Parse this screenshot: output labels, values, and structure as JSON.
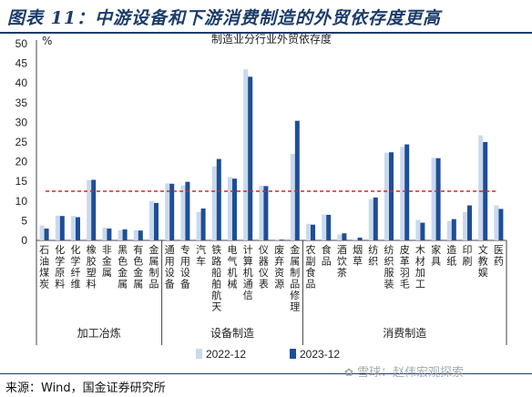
{
  "header": {
    "title": "图表 11：中游设备和下游消费制造的外贸依存度更高"
  },
  "footer": {
    "source": "来源：Wind，国金证券研究所"
  },
  "watermark": {
    "icon": "paw-icon",
    "text": "雪球：赵伟宏观探索"
  },
  "colors": {
    "series_2022": "#c9d9ee",
    "series_2023": "#1f4e96",
    "reference_line": "#d7262b",
    "header": "#1b3c6b"
  },
  "chart_data": {
    "type": "bar",
    "title": "制造业分行业外贸依存度",
    "ylabel": "%",
    "xlabel": "",
    "ylim": [
      0,
      50
    ],
    "yticks": [
      0,
      5,
      10,
      15,
      20,
      25,
      30,
      35,
      40,
      45,
      50
    ],
    "grid": false,
    "legend_position": "bottom",
    "reference_line": 12.5,
    "categories": [
      "石油煤炭",
      "化学原料",
      "化学纤维",
      "橡胶塑料",
      "非金属",
      "黑色金属",
      "有色金属",
      "金属制品",
      "通用设备",
      "专用设备",
      "汽车",
      "铁路船舶航天",
      "电气机械",
      "计算机通信",
      "仪器仪表",
      "废弃资源",
      "金属制品修理",
      "农副食品",
      "食品",
      "酒饮茶",
      "烟草",
      "纺织",
      "纺织服装",
      "皮革羽毛",
      "木材加工",
      "家具",
      "造纸",
      "印刷",
      "文教娱",
      "医药"
    ],
    "groups": [
      {
        "name": "加工冶炼",
        "start": 0,
        "end": 7
      },
      {
        "name": "设备制造",
        "start": 8,
        "end": 16
      },
      {
        "name": "消费制造",
        "start": 17,
        "end": 29
      }
    ],
    "series": [
      {
        "name": "2022-12",
        "values": [
          3.8,
          6.3,
          6.2,
          15.3,
          3.2,
          2.6,
          2.6,
          10.0,
          14.5,
          14.0,
          7.2,
          18.8,
          16.1,
          43.5,
          13.9,
          0.3,
          22.0,
          4.2,
          6.6,
          1.5,
          0.3,
          10.5,
          22.3,
          23.8,
          5.2,
          21.0,
          4.9,
          7.2,
          26.7,
          8.9
        ]
      },
      {
        "name": "2023-12",
        "values": [
          3.0,
          6.2,
          5.9,
          15.4,
          3.0,
          2.8,
          2.5,
          9.5,
          14.4,
          14.9,
          8.1,
          20.7,
          15.7,
          41.6,
          13.8,
          0.2,
          30.4,
          4.0,
          6.5,
          1.8,
          0.7,
          10.9,
          22.4,
          24.4,
          4.5,
          20.9,
          5.4,
          8.9,
          25.0,
          8.0
        ]
      }
    ]
  }
}
